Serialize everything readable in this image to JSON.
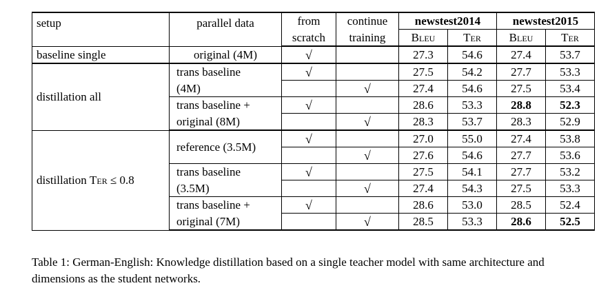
{
  "header": {
    "setup": "setup",
    "parallel_data": "parallel data",
    "from_scratch_1": "from",
    "from_scratch_2": "scratch",
    "continue_1": "continue",
    "continue_2": "training",
    "nt2014": "newstest2014",
    "nt2015": "newstest2015",
    "bleu": "Bleu",
    "ter": "Ter"
  },
  "rows": {
    "r1": {
      "setup": "baseline single",
      "par": "original (4M)",
      "fs": "√",
      "ct": "",
      "v": [
        "27.3",
        "54.6",
        "27.4",
        "53.7"
      ]
    },
    "r2": {
      "setup": "distillation all",
      "par_a": "trans baseline",
      "par_b": "(4M)",
      "a": {
        "fs": "√",
        "ct": "",
        "v": [
          "27.5",
          "54.2",
          "27.7",
          "53.3"
        ]
      },
      "b": {
        "fs": "",
        "ct": "√",
        "v": [
          "27.4",
          "54.6",
          "27.5",
          "53.4"
        ]
      }
    },
    "r3": {
      "par_a": "trans baseline +",
      "par_b": "original (8M)",
      "a": {
        "fs": "√",
        "ct": "",
        "v": [
          "28.6",
          "53.3",
          "28.8",
          "52.3"
        ]
      },
      "b": {
        "fs": "",
        "ct": "√",
        "v": [
          "28.3",
          "53.7",
          "28.3",
          "52.9"
        ]
      }
    },
    "r4": {
      "setup_text": "distillation",
      "setup_ter": "Ter",
      "setup_cond": "≤ 0.8",
      "par": "reference (3.5M)",
      "a": {
        "fs": "√",
        "ct": "",
        "v": [
          "27.0",
          "55.0",
          "27.4",
          "53.8"
        ]
      },
      "b": {
        "fs": "",
        "ct": "√",
        "v": [
          "27.6",
          "54.6",
          "27.7",
          "53.6"
        ]
      }
    },
    "r5": {
      "par_a": "trans baseline",
      "par_b": "(3.5M)",
      "a": {
        "fs": "√",
        "ct": "",
        "v": [
          "27.5",
          "54.1",
          "27.7",
          "53.2"
        ]
      },
      "b": {
        "fs": "",
        "ct": "√",
        "v": [
          "27.4",
          "54.3",
          "27.5",
          "53.3"
        ]
      }
    },
    "r6": {
      "par_a": "trans baseline +",
      "par_b": "original (7M)",
      "a": {
        "fs": "√",
        "ct": "",
        "v": [
          "28.6",
          "53.0",
          "28.5",
          "52.4"
        ]
      },
      "b": {
        "fs": "",
        "ct": "√",
        "v": [
          "28.5",
          "53.3",
          "28.6",
          "52.5"
        ]
      }
    }
  },
  "caption": "Table 1: German-English: Knowledge distillation based on a single teacher model with same architecture and dimensions as the student networks."
}
